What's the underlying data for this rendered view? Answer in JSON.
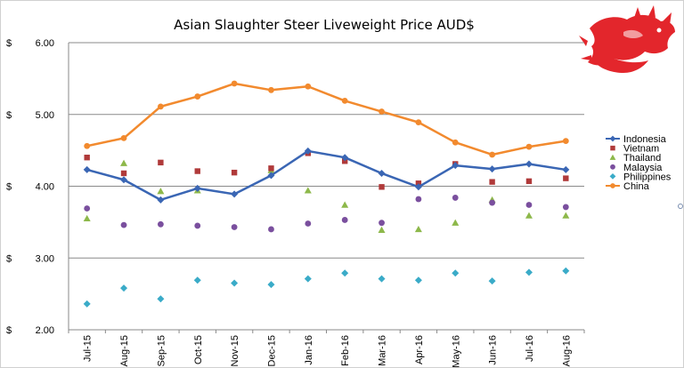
{
  "chart_data": {
    "type": "line",
    "title": "Asian Slaughter Steer Liveweight Price AUD$",
    "currency_symbol": "$",
    "categories": [
      "Jul-15",
      "Aug-15",
      "Sep-15",
      "Oct-15",
      "Nov-15",
      "Dec-15",
      "Jan-16",
      "Feb-16",
      "Mar-16",
      "Apr-16",
      "May-16",
      "Jun-16",
      "Jul-16",
      "Aug-16"
    ],
    "y_ticks": [
      "2.00",
      "3.00",
      "4.00",
      "5.00",
      "6.00"
    ],
    "ylim": [
      2.0,
      6.0
    ],
    "grid": true,
    "legend_position": "right",
    "series": [
      {
        "name": "Indonesia",
        "style": "line-marker",
        "marker": "diamond",
        "color": "#3a66b4",
        "values": [
          4.23,
          4.09,
          3.81,
          3.97,
          3.89,
          4.15,
          4.49,
          4.4,
          4.18,
          3.99,
          4.29,
          4.24,
          4.31,
          4.23
        ]
      },
      {
        "name": "Vietnam",
        "style": "marker",
        "marker": "square",
        "color": "#b03a3a",
        "values": [
          4.4,
          4.18,
          4.33,
          4.21,
          4.19,
          4.25,
          4.46,
          4.35,
          3.99,
          4.04,
          4.31,
          4.06,
          4.07,
          4.11
        ]
      },
      {
        "name": "Thailand",
        "style": "marker",
        "marker": "triangle",
        "color": "#8db84a",
        "values": [
          3.55,
          4.32,
          3.93,
          3.94,
          null,
          4.22,
          3.94,
          3.74,
          3.39,
          3.4,
          3.49,
          3.81,
          3.59,
          3.59
        ]
      },
      {
        "name": "Malaysia",
        "style": "marker",
        "marker": "circle",
        "color": "#7a4f9e",
        "values": [
          3.69,
          3.46,
          3.47,
          3.45,
          3.43,
          3.4,
          3.48,
          3.53,
          3.49,
          3.82,
          3.84,
          3.77,
          3.74,
          3.71
        ]
      },
      {
        "name": "Philippines",
        "style": "marker",
        "marker": "diamond",
        "color": "#3aabc8",
        "values": [
          2.36,
          2.58,
          2.43,
          2.69,
          2.65,
          2.63,
          2.71,
          2.79,
          2.71,
          2.69,
          2.79,
          2.68,
          2.8,
          2.82
        ]
      },
      {
        "name": "China",
        "style": "line-marker",
        "marker": "circle",
        "color": "#f28a2e",
        "values": [
          4.56,
          4.67,
          5.11,
          5.25,
          5.43,
          5.34,
          5.39,
          5.19,
          5.04,
          4.89,
          4.61,
          4.44,
          4.55,
          4.63
        ]
      }
    ]
  }
}
